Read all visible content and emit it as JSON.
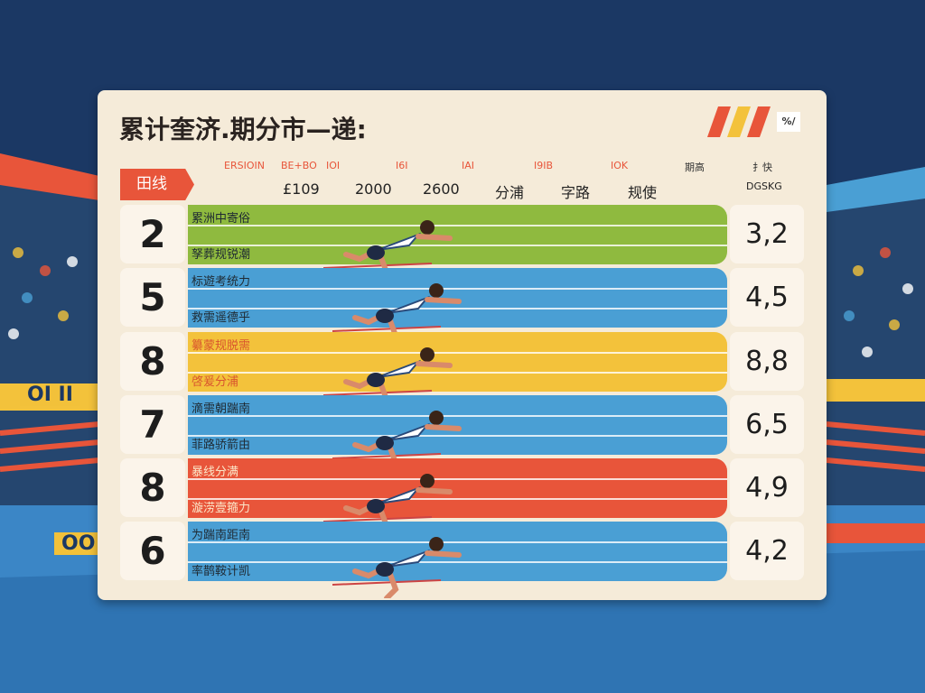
{
  "header": {
    "title": "累计奎济.期分市—递:",
    "badge": "%/"
  },
  "tab": "田线",
  "columns_top": [
    "ERSIOIN",
    "BE+BO",
    "IOI",
    "I6I",
    "IAI",
    "I9IB",
    "IOK",
    "期高",
    "扌快"
  ],
  "columns_bottom": [
    "£109",
    "2000",
    "2600",
    "分浦",
    "字路",
    "规使",
    "DGSKG"
  ],
  "signs": [
    "OI II",
    "OO"
  ],
  "rows": [
    {
      "rank": 2,
      "top": "累洲中寄俗",
      "bottom": "孥葬规锐潮",
      "score": "3,2",
      "color": "#8fba3f",
      "label_color": "#1f2a33"
    },
    {
      "rank": 5,
      "top": "标遊考统力",
      "bottom": "救需遥德乎",
      "score": "4,5",
      "color": "#4a9fd4",
      "label_color": "#1f2a33"
    },
    {
      "rank": 8,
      "top": "纂蒙规脱需",
      "bottom": "啓爰分浦",
      "score": "8,8",
      "color": "#f3c23b",
      "label_color": "#d9542e"
    },
    {
      "rank": 7,
      "top": "滴需朝踹南",
      "bottom": "菲路骄箭由",
      "score": "6,5",
      "color": "#4a9fd4",
      "label_color": "#1f2a33"
    },
    {
      "rank": 8,
      "top": "暴线分满",
      "bottom": "漩涝壹箍力",
      "score": "4,9",
      "color": "#e8553a",
      "label_color": "#fbe6c8"
    },
    {
      "rank": 6,
      "top": "为踹南距南",
      "bottom": "率鹊鞍计凯",
      "score": "4,2",
      "color": "#4a9fd4",
      "label_color": "#1f2a33"
    }
  ]
}
